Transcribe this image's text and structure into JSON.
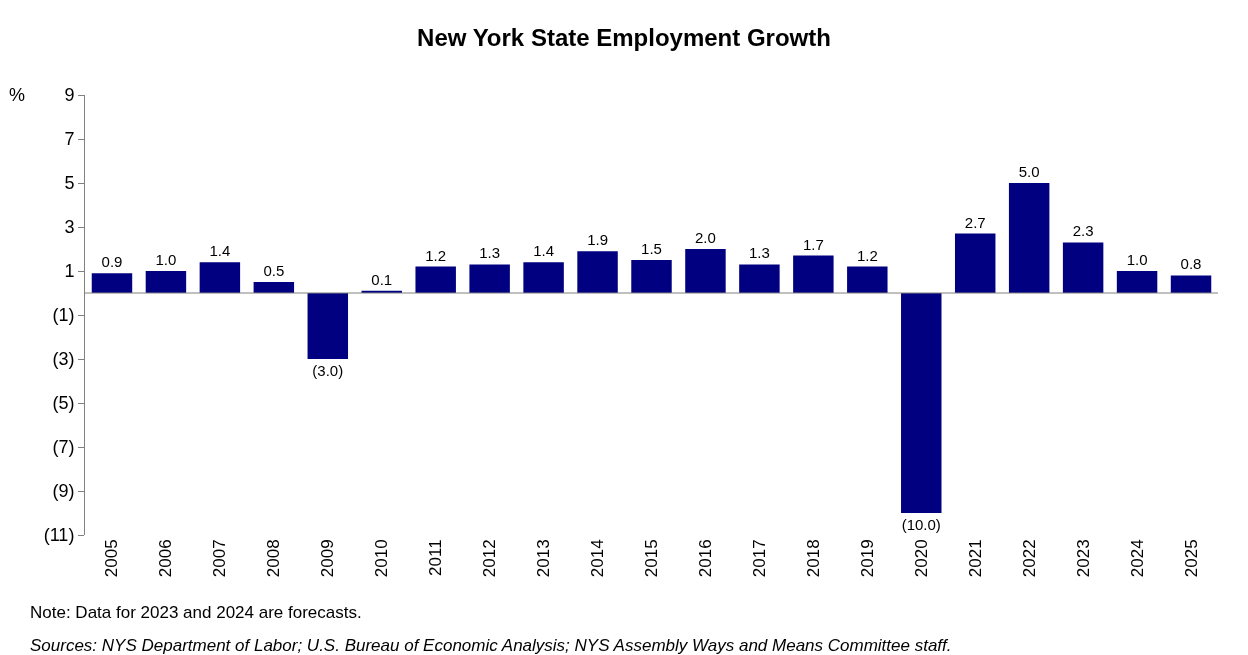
{
  "chart_data": {
    "type": "bar",
    "title": "New York State Employment Growth",
    "ylabel": "%",
    "categories": [
      "2005",
      "2006",
      "2007",
      "2008",
      "2009",
      "2010",
      "2011",
      "2012",
      "2013",
      "2014",
      "2015",
      "2016",
      "2017",
      "2018",
      "2019",
      "2020",
      "2021",
      "2022",
      "2023",
      "2024",
      "2025"
    ],
    "values": [
      0.9,
      1.0,
      1.4,
      0.5,
      -3.0,
      0.1,
      1.2,
      1.3,
      1.4,
      1.9,
      1.5,
      2.0,
      1.3,
      1.7,
      1.2,
      -10.0,
      2.7,
      5.0,
      2.3,
      1.0,
      0.8
    ],
    "value_labels": [
      "0.9",
      "1.0",
      "1.4",
      "0.5",
      "(3.0)",
      "0.1",
      "1.2",
      "1.3",
      "1.4",
      "1.9",
      "1.5",
      "2.0",
      "1.3",
      "1.7",
      "1.2",
      "(10.0)",
      "2.7",
      "5.0",
      "2.3",
      "1.0",
      "0.8"
    ],
    "color": "#000080",
    "ylim": [
      -11,
      9
    ],
    "yticks": [
      9,
      7,
      5,
      3,
      1,
      {
        "value": -1,
        "label": "(1)"
      },
      {
        "value": -3,
        "label": "(3)"
      },
      {
        "value": -5,
        "label": "(5)"
      },
      {
        "value": -7,
        "label": "(7)"
      },
      {
        "value": -9,
        "label": "(9)"
      },
      {
        "value": -11,
        "label": "(11)"
      }
    ],
    "legend": false,
    "annotations": [
      "Note: Data for 2023 and 2024 are forecasts.",
      "Sources: NYS Department of Labor; U.S. Bureau of Economic Analysis; NYS Assembly Ways and Means Committee staff."
    ]
  }
}
